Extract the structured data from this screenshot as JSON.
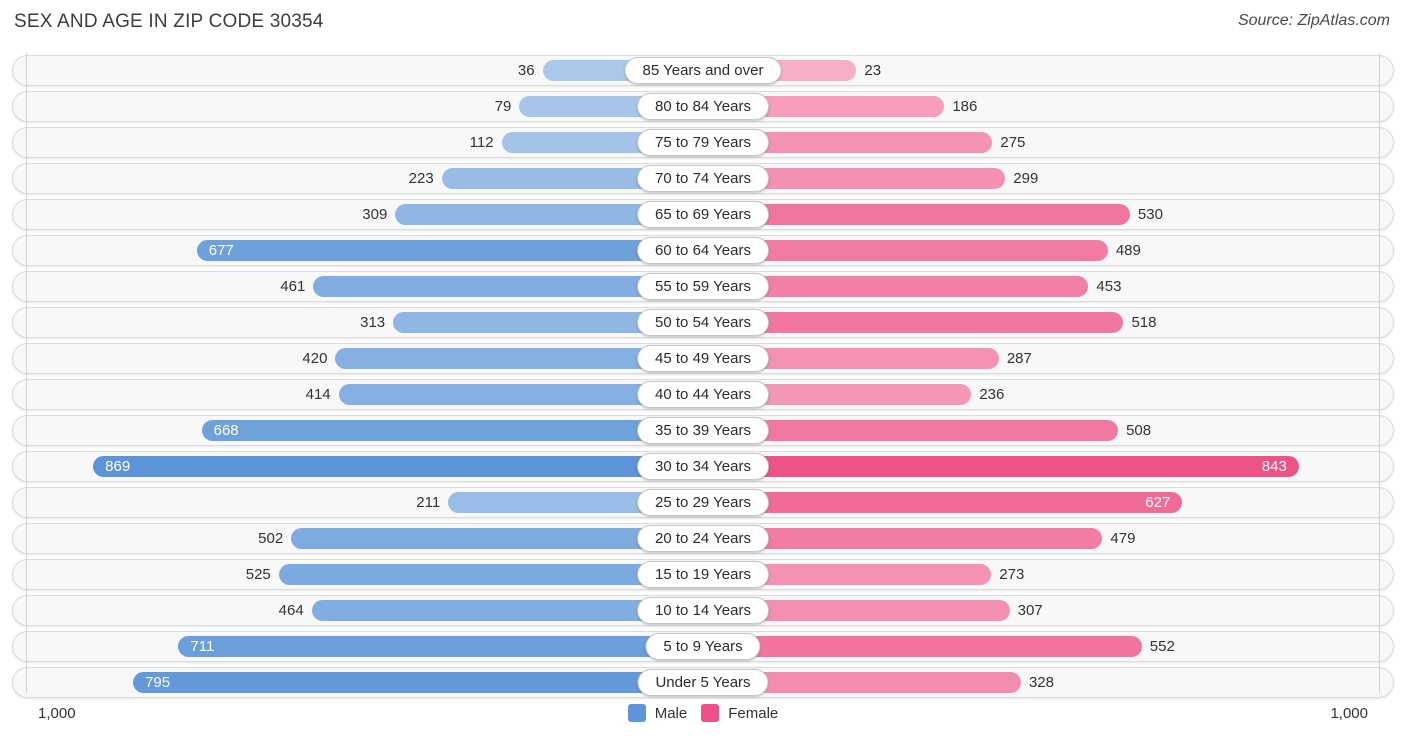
{
  "title": "SEX AND AGE IN ZIP CODE 30354",
  "source": "Source: ZipAtlas.com",
  "axis": {
    "left_label": "1,000",
    "right_label": "1,000"
  },
  "legend": {
    "male_label": "Male",
    "female_label": "Female"
  },
  "colors": {
    "male_legend": "#6094d9",
    "female_legend": "#ee4f86",
    "male_light": "#adcaeb",
    "male_dark": "#508cd4",
    "female_light": "#f7b2c9",
    "female_dark": "#ec417a",
    "row_bg": "#f8f8f8",
    "row_border": "#dbdbdb"
  },
  "chart_data": {
    "type": "bar",
    "subtype": "population-pyramid",
    "title": "SEX AND AGE IN ZIP CODE 30354",
    "categories": [
      "85 Years and over",
      "80 to 84 Years",
      "75 to 79 Years",
      "70 to 74 Years",
      "65 to 69 Years",
      "60 to 64 Years",
      "55 to 59 Years",
      "50 to 54 Years",
      "45 to 49 Years",
      "40 to 44 Years",
      "35 to 39 Years",
      "30 to 34 Years",
      "25 to 29 Years",
      "20 to 24 Years",
      "15 to 19 Years",
      "10 to 14 Years",
      "5 to 9 Years",
      "Under 5 Years"
    ],
    "series": [
      {
        "name": "Male",
        "values": [
          36,
          79,
          112,
          223,
          309,
          677,
          461,
          313,
          420,
          414,
          668,
          869,
          211,
          502,
          525,
          464,
          711,
          795
        ]
      },
      {
        "name": "Female",
        "values": [
          23,
          186,
          275,
          299,
          530,
          489,
          453,
          518,
          287,
          236,
          508,
          843,
          627,
          479,
          273,
          307,
          552,
          328
        ]
      }
    ],
    "axis_max_each_side": 1000,
    "legend_position": "bottom",
    "value_labels": "at bar ends; drawn inside bar in white when value is large"
  }
}
